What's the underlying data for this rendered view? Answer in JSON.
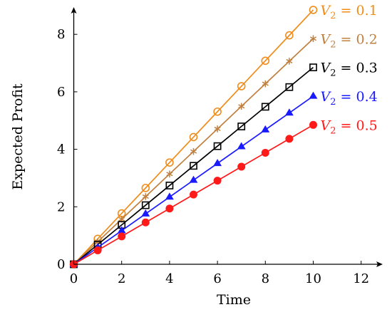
{
  "chart_data": {
    "type": "line",
    "xlabel": "Time",
    "ylabel": "Expected Profit",
    "xlim": [
      0,
      13
    ],
    "ylim": [
      0,
      9
    ],
    "xticks": [
      "0",
      "2",
      "4",
      "6",
      "8",
      "10",
      "12"
    ],
    "yticks": [
      "0",
      "2",
      "4",
      "6",
      "8"
    ],
    "grid": false,
    "legend_placement": "inline at line ends",
    "x": [
      0,
      1,
      2,
      3,
      4,
      5,
      6,
      7,
      8,
      9,
      10
    ],
    "series": [
      {
        "name": "V_2 = 0.1",
        "label_var": "V",
        "label_sub": "2",
        "label_rest": " = 0.1",
        "color": "#f08c1a",
        "marker": "open-circle",
        "values": [
          0,
          0.885,
          1.77,
          2.655,
          3.54,
          4.425,
          5.31,
          6.195,
          7.08,
          7.965,
          8.85
        ]
      },
      {
        "name": "V_2 = 0.2",
        "label_var": "V",
        "label_sub": "2",
        "label_rest": " = 0.2",
        "color": "#bf8040",
        "marker": "asterisk",
        "values": [
          0,
          0.785,
          1.57,
          2.355,
          3.14,
          3.925,
          4.71,
          5.495,
          6.28,
          7.065,
          7.85
        ]
      },
      {
        "name": "V_2 = 0.3",
        "label_var": "V",
        "label_sub": "2",
        "label_rest": " = 0.3",
        "color": "#000000",
        "marker": "open-square",
        "values": [
          0,
          0.685,
          1.37,
          2.055,
          2.74,
          3.425,
          4.11,
          4.795,
          5.48,
          6.165,
          6.85
        ]
      },
      {
        "name": "V_2 = 0.4",
        "label_var": "V",
        "label_sub": "2",
        "label_rest": " = 0.4",
        "color": "#1a1aff",
        "marker": "filled-triangle",
        "values": [
          0,
          0.585,
          1.17,
          1.755,
          2.34,
          2.925,
          3.51,
          4.095,
          4.68,
          5.265,
          5.85
        ]
      },
      {
        "name": "V_2 = 0.5",
        "label_var": "V",
        "label_sub": "2",
        "label_rest": " = 0.5",
        "color": "#ff1a1a",
        "marker": "filled-circle",
        "values": [
          0,
          0.485,
          0.97,
          1.455,
          1.94,
          2.425,
          2.91,
          3.395,
          3.88,
          4.365,
          4.85
        ]
      }
    ]
  }
}
